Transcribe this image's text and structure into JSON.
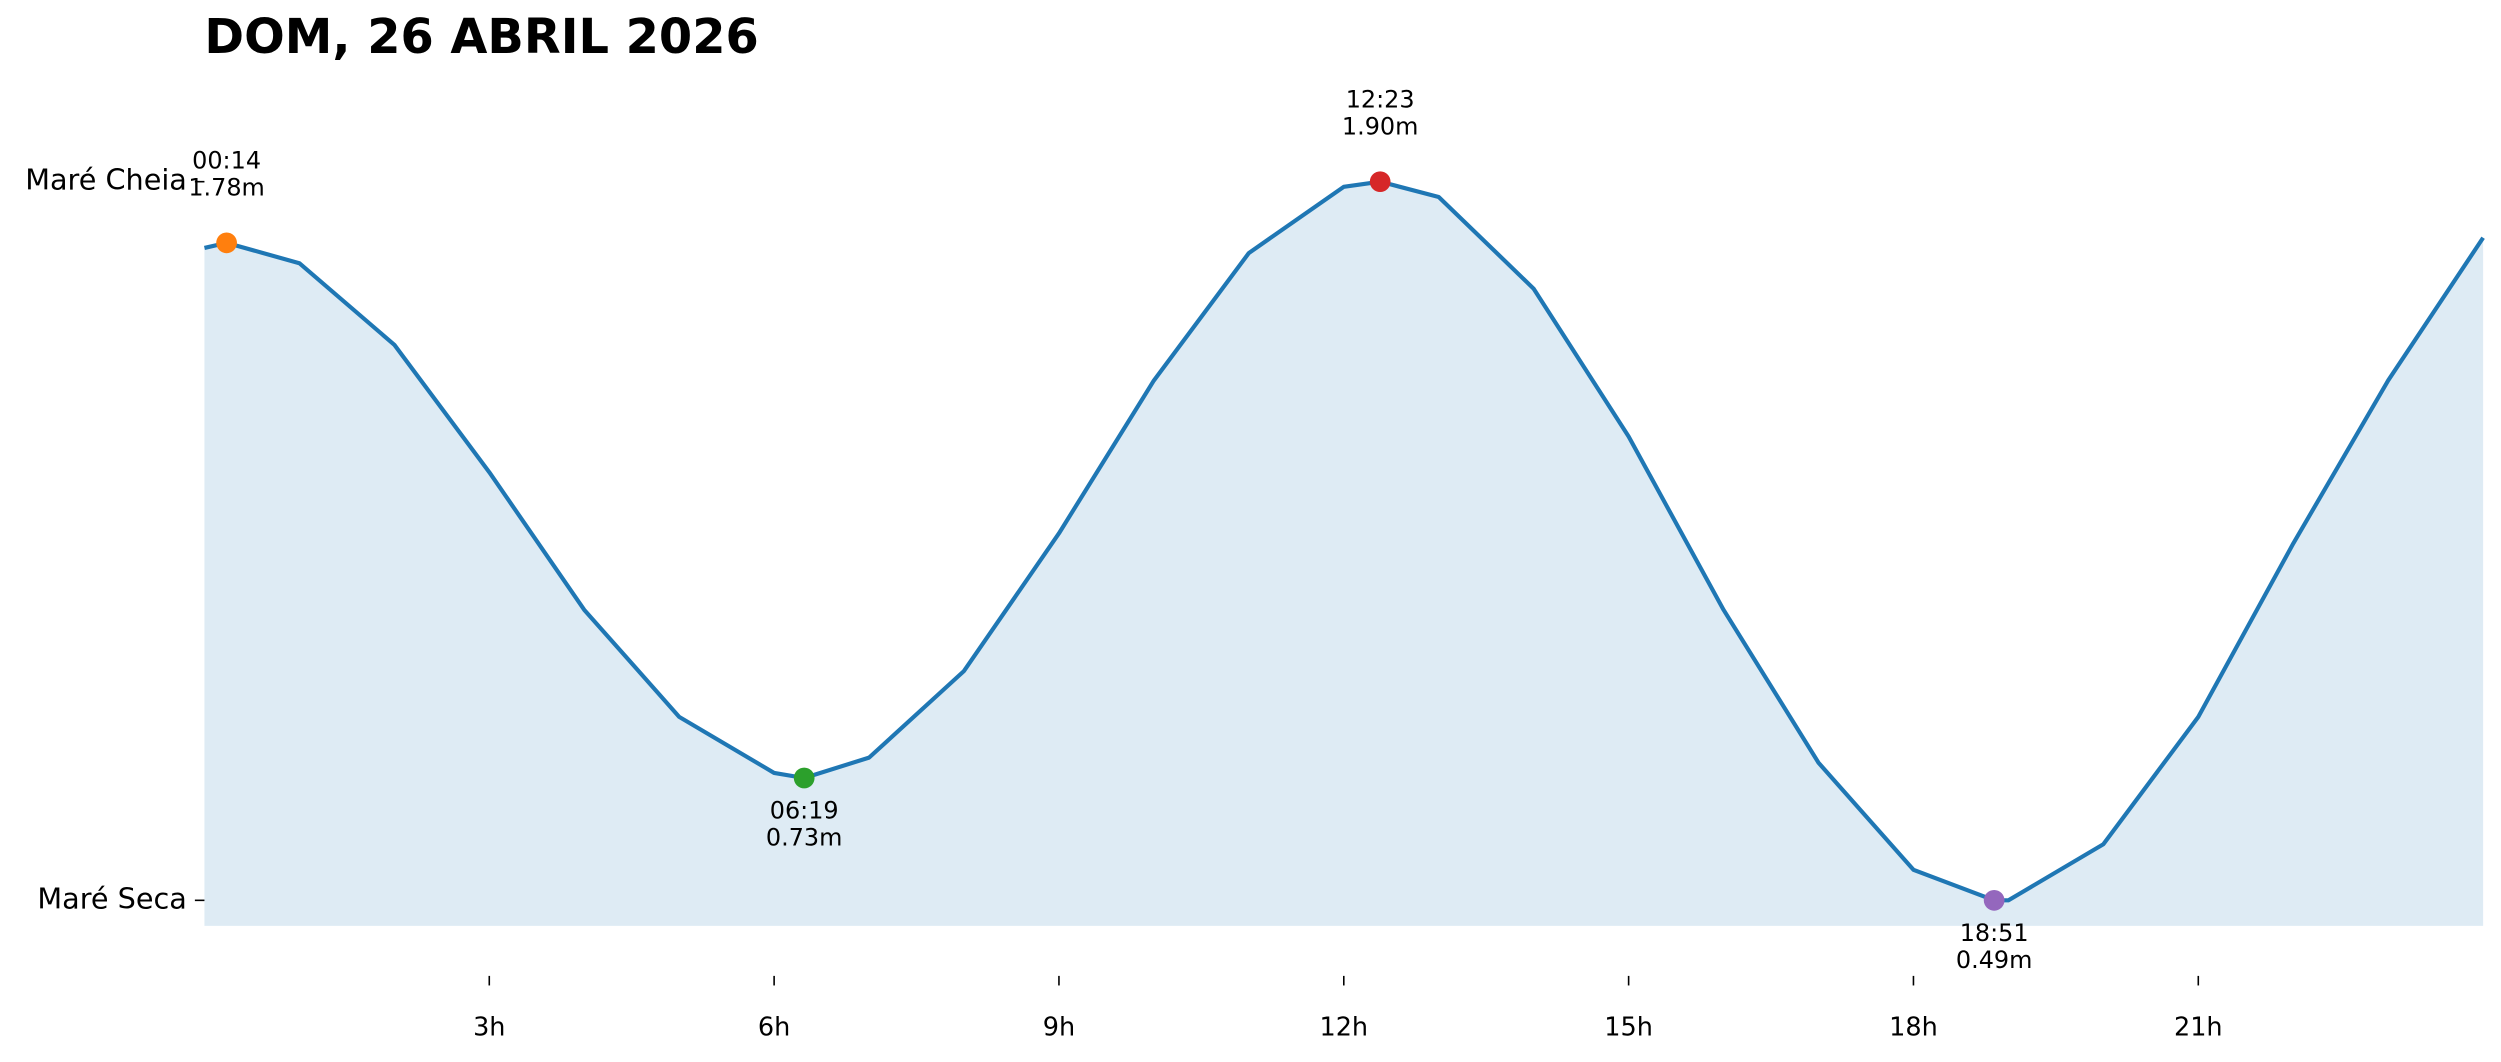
{
  "chart_data": {
    "type": "area",
    "title": "DOM, 26 ABRIL 2026",
    "xlim": [
      0,
      24
    ],
    "ylim": [
      0.44,
      2.08
    ],
    "xticks": [
      {
        "value": 3,
        "label": "3h"
      },
      {
        "value": 6,
        "label": "6h"
      },
      {
        "value": 9,
        "label": "9h"
      },
      {
        "value": 12,
        "label": "12h"
      },
      {
        "value": 15,
        "label": "15h"
      },
      {
        "value": 18,
        "label": "18h"
      },
      {
        "value": 21,
        "label": "21h"
      }
    ],
    "yticks": [
      {
        "value": 0.49,
        "label": "Maré Seca"
      },
      {
        "value": 1.9,
        "label": "Maré Cheia"
      }
    ],
    "series": [
      {
        "color": "#1f77b4",
        "x": [
          0,
          0.2333,
          1,
          2,
          3,
          4,
          5,
          6,
          6.3167,
          7,
          8,
          9,
          10,
          11,
          12,
          12.3833,
          13,
          14,
          15,
          16,
          17,
          18,
          18.85,
          19,
          20,
          21,
          22,
          23,
          24
        ],
        "values": [
          1.77,
          1.78,
          1.74,
          1.58,
          1.33,
          1.06,
          0.85,
          0.74,
          0.73,
          0.77,
          0.94,
          1.21,
          1.51,
          1.76,
          1.89,
          1.9,
          1.87,
          1.69,
          1.4,
          1.06,
          0.76,
          0.55,
          0.49,
          0.49,
          0.6,
          0.85,
          1.19,
          1.51,
          1.79
        ]
      }
    ],
    "points": [
      {
        "time": "00:14",
        "x": 0.2333,
        "value": 1.78,
        "value_label": "1.78m",
        "color": "#ff7f0e"
      },
      {
        "time": "06:19",
        "x": 6.3167,
        "value": 0.73,
        "value_label": "0.73m",
        "color": "#2ca02c"
      },
      {
        "time": "12:23",
        "x": 12.3833,
        "value": 1.9,
        "value_label": "1.90m",
        "color": "#d62728"
      },
      {
        "time": "18:51",
        "x": 18.85,
        "value": 0.49,
        "value_label": "0.49m",
        "color": "#9467bd"
      }
    ]
  }
}
